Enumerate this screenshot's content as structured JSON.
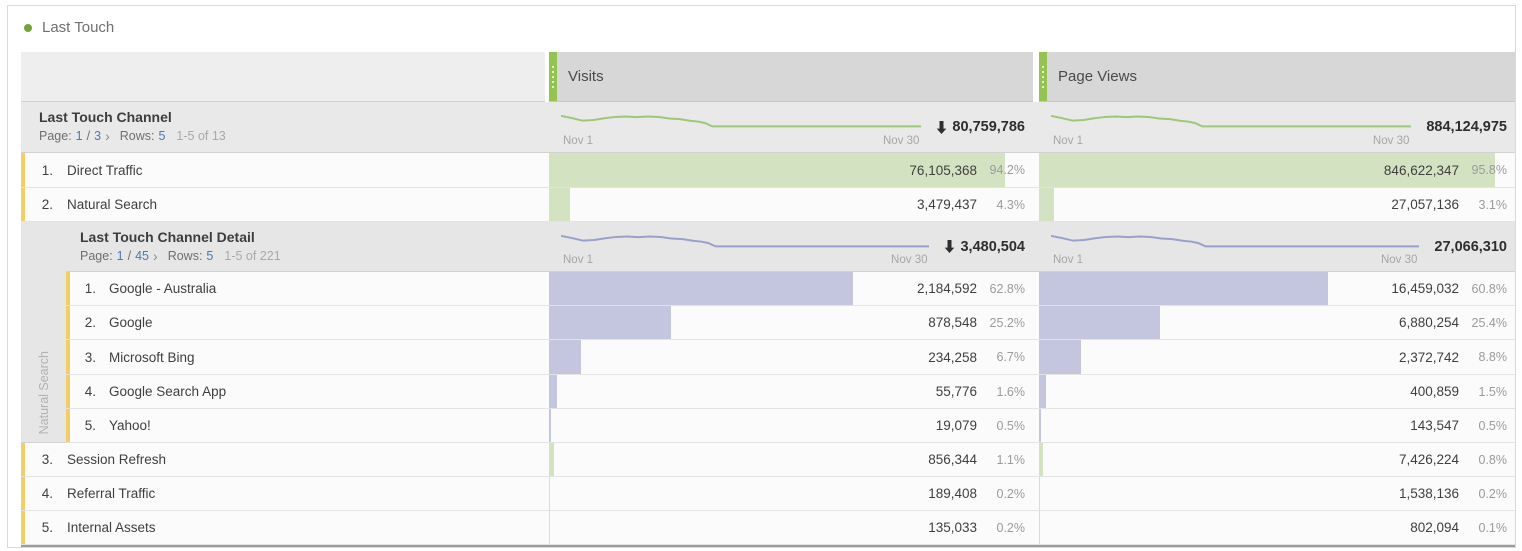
{
  "title": {
    "text": "Last Touch"
  },
  "columns": {
    "visits": {
      "label": "Visits"
    },
    "page_views": {
      "label": "Page Views"
    }
  },
  "main": {
    "dimension": "Last Touch Channel",
    "pagination": {
      "page_label": "Page:",
      "page": "1",
      "slash": "/",
      "total_pages": "3",
      "next": "›",
      "rows_label": "Rows:",
      "rows": "5",
      "range": "1-5 of 13"
    },
    "axis": {
      "start": "Nov 1",
      "end": "Nov 30"
    },
    "totals": {
      "visits": "80,759,786",
      "page_views": "884,124,975"
    },
    "rows": [
      {
        "index": "1.",
        "label": "Direct Traffic",
        "visits": {
          "value": "76,105,368",
          "pct": "94.2%",
          "pct_num": 94.2
        },
        "page_views": {
          "value": "846,622,347",
          "pct": "95.8%",
          "pct_num": 95.8
        }
      },
      {
        "index": "2.",
        "label": "Natural Search",
        "visits": {
          "value": "3,479,437",
          "pct": "4.3%",
          "pct_num": 4.3
        },
        "page_views": {
          "value": "27,057,136",
          "pct": "3.1%",
          "pct_num": 3.1
        }
      },
      {
        "index": "3.",
        "label": "Session Refresh",
        "visits": {
          "value": "856,344",
          "pct": "1.1%",
          "pct_num": 1.1
        },
        "page_views": {
          "value": "7,426,224",
          "pct": "0.8%",
          "pct_num": 0.8
        }
      },
      {
        "index": "4.",
        "label": "Referral Traffic",
        "visits": {
          "value": "189,408",
          "pct": "0.2%",
          "pct_num": 0.2
        },
        "page_views": {
          "value": "1,538,136",
          "pct": "0.2%",
          "pct_num": 0.2
        }
      },
      {
        "index": "5.",
        "label": "Internal Assets",
        "visits": {
          "value": "135,033",
          "pct": "0.2%",
          "pct_num": 0.2
        },
        "page_views": {
          "value": "802,094",
          "pct": "0.1%",
          "pct_num": 0.1
        }
      }
    ]
  },
  "breakdown": {
    "parent": "Natural Search",
    "dimension": "Last Touch Channel Detail",
    "pagination": {
      "page_label": "Page:",
      "page": "1",
      "slash": "/",
      "total_pages": "45",
      "next": "›",
      "rows_label": "Rows:",
      "rows": "5",
      "range": "1-5 of 221"
    },
    "axis": {
      "start": "Nov 1",
      "end": "Nov 30"
    },
    "totals": {
      "visits": "3,480,504",
      "page_views": "27,066,310"
    },
    "rows": [
      {
        "index": "1.",
        "label": "Google - Australia",
        "visits": {
          "value": "2,184,592",
          "pct": "62.8%",
          "pct_num": 62.8
        },
        "page_views": {
          "value": "16,459,032",
          "pct": "60.8%",
          "pct_num": 60.8
        }
      },
      {
        "index": "2.",
        "label": "Google",
        "visits": {
          "value": "878,548",
          "pct": "25.2%",
          "pct_num": 25.2
        },
        "page_views": {
          "value": "6,880,254",
          "pct": "25.4%",
          "pct_num": 25.4
        }
      },
      {
        "index": "3.",
        "label": "Microsoft Bing",
        "visits": {
          "value": "234,258",
          "pct": "6.7%",
          "pct_num": 6.7
        },
        "page_views": {
          "value": "2,372,742",
          "pct": "8.8%",
          "pct_num": 8.8
        }
      },
      {
        "index": "4.",
        "label": "Google Search App",
        "visits": {
          "value": "55,776",
          "pct": "1.6%",
          "pct_num": 1.6
        },
        "page_views": {
          "value": "400,859",
          "pct": "1.5%",
          "pct_num": 1.5
        }
      },
      {
        "index": "5.",
        "label": "Yahoo!",
        "visits": {
          "value": "19,079",
          "pct": "0.5%",
          "pct_num": 0.5
        },
        "page_views": {
          "value": "143,547",
          "pct": "0.5%",
          "pct_num": 0.5
        }
      }
    ]
  },
  "sparkline": {
    "points": [
      [
        0,
        22
      ],
      [
        3,
        32
      ],
      [
        6,
        44
      ],
      [
        9,
        41
      ],
      [
        12,
        33
      ],
      [
        15,
        27
      ],
      [
        18,
        25
      ],
      [
        21,
        28
      ],
      [
        24,
        25
      ],
      [
        27,
        27
      ],
      [
        30,
        34
      ],
      [
        33,
        37
      ],
      [
        36,
        45
      ],
      [
        38,
        48
      ],
      [
        40,
        55
      ],
      [
        42,
        70
      ],
      [
        100,
        70
      ]
    ],
    "green": "#9cc87a",
    "purple": "#9aa0cc"
  },
  "colors": {
    "bar_green": "#d3e3c2",
    "bar_purple": "#c4c6e0",
    "accent_yellow": "#f2cf66",
    "handle_green": "#93c44f",
    "title_dot": "#72a634",
    "link_blue": "#4a7ab0"
  }
}
